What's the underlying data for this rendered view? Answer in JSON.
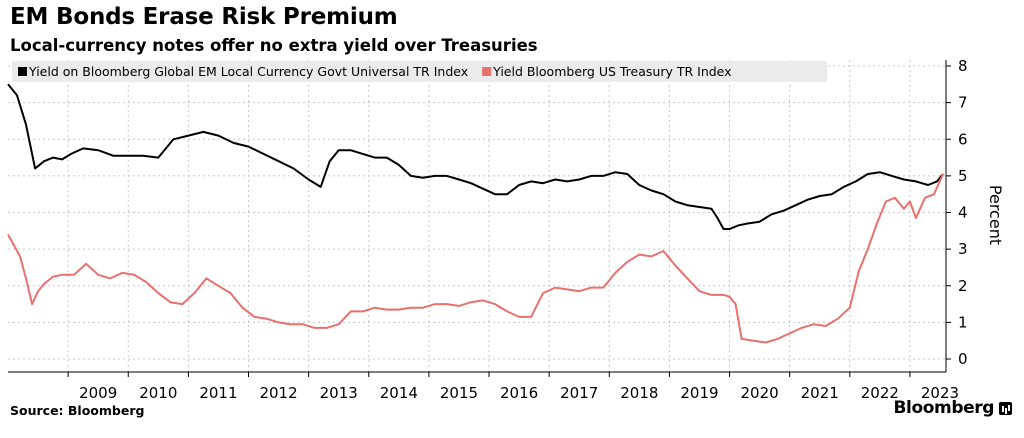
{
  "title": "EM Bonds Erase Risk Premium",
  "subtitle": "Local-currency notes offer no extra yield over Treasuries",
  "source": "Source: Bloomberg",
  "brand": "Bloomberg",
  "chart_data": {
    "type": "line",
    "ylabel": "Percent",
    "ylim": [
      0,
      8
    ],
    "yticks": [
      0,
      1,
      2,
      3,
      4,
      5,
      6,
      7,
      8
    ],
    "xlim": [
      2008.0,
      2023.6
    ],
    "xticks": [
      "2009",
      "2010",
      "2011",
      "2012",
      "2013",
      "2014",
      "2015",
      "2016",
      "2017",
      "2018",
      "2019",
      "2020",
      "2021",
      "2022",
      "2023"
    ],
    "grid": true,
    "legend": "top-left",
    "series": [
      {
        "name": "Yield on Bloomberg Global EM Local Currency Govt Universal TR Index",
        "color": "#000000",
        "x": [
          2008.0,
          2008.15,
          2008.3,
          2008.45,
          2008.6,
          2008.75,
          2008.9,
          2009.05,
          2009.25,
          2009.5,
          2009.75,
          2010.0,
          2010.25,
          2010.5,
          2010.75,
          2011.0,
          2011.25,
          2011.5,
          2011.75,
          2012.0,
          2012.25,
          2012.5,
          2012.75,
          2013.0,
          2013.2,
          2013.35,
          2013.5,
          2013.7,
          2013.9,
          2014.1,
          2014.3,
          2014.5,
          2014.7,
          2014.9,
          2015.1,
          2015.3,
          2015.5,
          2015.7,
          2015.9,
          2016.1,
          2016.3,
          2016.5,
          2016.7,
          2016.9,
          2017.1,
          2017.3,
          2017.5,
          2017.7,
          2017.9,
          2018.1,
          2018.3,
          2018.5,
          2018.7,
          2018.9,
          2019.1,
          2019.3,
          2019.5,
          2019.7,
          2019.8,
          2019.9,
          2020.0,
          2020.15,
          2020.3,
          2020.5,
          2020.7,
          2020.9,
          2021.1,
          2021.3,
          2021.5,
          2021.7,
          2021.9,
          2022.1,
          2022.3,
          2022.5,
          2022.7,
          2022.9,
          2023.1,
          2023.3,
          2023.45,
          2023.55
        ],
        "y": [
          7.5,
          7.2,
          6.4,
          5.2,
          5.4,
          5.5,
          5.45,
          5.6,
          5.75,
          5.7,
          5.55,
          5.55,
          5.55,
          5.5,
          6.0,
          6.1,
          6.2,
          6.1,
          5.9,
          5.8,
          5.6,
          5.4,
          5.2,
          4.9,
          4.7,
          5.4,
          5.7,
          5.7,
          5.6,
          5.5,
          5.5,
          5.3,
          5.0,
          4.95,
          5.0,
          5.0,
          4.9,
          4.8,
          4.65,
          4.5,
          4.5,
          4.75,
          4.85,
          4.8,
          4.9,
          4.85,
          4.9,
          5.0,
          5.0,
          5.1,
          5.05,
          4.75,
          4.6,
          4.5,
          4.3,
          4.2,
          4.15,
          4.1,
          3.85,
          3.55,
          3.55,
          3.65,
          3.7,
          3.75,
          3.95,
          4.05,
          4.2,
          4.35,
          4.45,
          4.5,
          4.7,
          4.85,
          5.05,
          5.1,
          5.0,
          4.9,
          4.85,
          4.75,
          4.85,
          5.05
        ]
      },
      {
        "name": "Yield Bloomberg US Treasury TR Index",
        "color": "#e9706d",
        "x": [
          2008.0,
          2008.1,
          2008.2,
          2008.3,
          2008.4,
          2008.5,
          2008.6,
          2008.75,
          2008.9,
          2009.1,
          2009.3,
          2009.5,
          2009.7,
          2009.9,
          2010.1,
          2010.3,
          2010.5,
          2010.7,
          2010.9,
          2011.1,
          2011.3,
          2011.5,
          2011.7,
          2011.9,
          2012.1,
          2012.3,
          2012.5,
          2012.7,
          2012.9,
          2013.1,
          2013.3,
          2013.5,
          2013.7,
          2013.9,
          2014.1,
          2014.3,
          2014.5,
          2014.7,
          2014.9,
          2015.1,
          2015.3,
          2015.5,
          2015.7,
          2015.9,
          2016.1,
          2016.3,
          2016.5,
          2016.7,
          2016.9,
          2017.1,
          2017.3,
          2017.5,
          2017.7,
          2017.9,
          2018.1,
          2018.3,
          2018.5,
          2018.7,
          2018.9,
          2019.1,
          2019.3,
          2019.5,
          2019.7,
          2019.9,
          2020.0,
          2020.1,
          2020.2,
          2020.4,
          2020.6,
          2020.8,
          2021.0,
          2021.2,
          2021.4,
          2021.6,
          2021.8,
          2022.0,
          2022.15,
          2022.3,
          2022.45,
          2022.6,
          2022.75,
          2022.9,
          2023.0,
          2023.1,
          2023.25,
          2023.4,
          2023.55
        ],
        "y": [
          3.4,
          3.1,
          2.8,
          2.2,
          1.5,
          1.85,
          2.05,
          2.25,
          2.3,
          2.3,
          2.6,
          2.3,
          2.2,
          2.35,
          2.3,
          2.1,
          1.8,
          1.55,
          1.5,
          1.8,
          2.2,
          2.0,
          1.8,
          1.4,
          1.15,
          1.1,
          1.0,
          0.95,
          0.95,
          0.85,
          0.85,
          0.95,
          1.3,
          1.3,
          1.4,
          1.35,
          1.35,
          1.4,
          1.4,
          1.5,
          1.5,
          1.45,
          1.55,
          1.6,
          1.5,
          1.3,
          1.15,
          1.15,
          1.8,
          1.95,
          1.9,
          1.85,
          1.95,
          1.95,
          2.35,
          2.65,
          2.85,
          2.8,
          2.95,
          2.55,
          2.2,
          1.85,
          1.75,
          1.75,
          1.7,
          1.5,
          0.55,
          0.5,
          0.45,
          0.55,
          0.7,
          0.85,
          0.95,
          0.9,
          1.1,
          1.4,
          2.4,
          3.0,
          3.7,
          4.3,
          4.4,
          4.1,
          4.3,
          3.85,
          4.4,
          4.5,
          5.05
        ]
      }
    ]
  }
}
